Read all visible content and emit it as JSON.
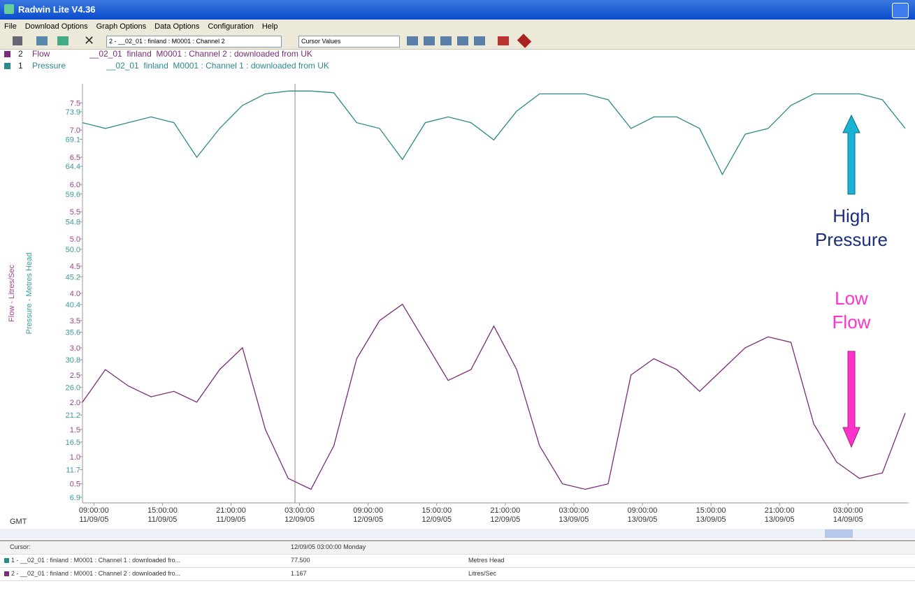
{
  "window": {
    "title": "Radwin Lite V4.36"
  },
  "menu": [
    "File",
    "Download Options",
    "Graph Options",
    "Data Options",
    "Configuration",
    "Help"
  ],
  "toolbar": {
    "channel_select": "2 - __02_01 : finland : M0001 : Channel 2",
    "view_select": "Cursor Values"
  },
  "chart_data": {
    "type": "line",
    "ylabel": "Flow - Litres/Sec",
    "y2label": "Pressure - Metres Head",
    "xlabel": "GMT",
    "x": [
      "08:00:00\n11/09/05",
      "10:00:00\n11/09/05",
      "12:00:00\n11/09/05",
      "14:00:00\n11/09/05",
      "16:00:00\n11/09/05",
      "18:00:00\n11/09/05",
      "20:00:00\n11/09/05",
      "22:00:00\n11/09/05",
      "00:00:00\n12/09/05",
      "02:00:00\n12/09/05",
      "04:00:00\n12/09/05",
      "06:00:00\n12/09/05",
      "08:00:00\n12/09/05",
      "10:00:00\n12/09/05",
      "12:00:00\n12/09/05",
      "14:00:00\n12/09/05",
      "16:00:00\n12/09/05",
      "18:00:00\n12/09/05",
      "20:00:00\n12/09/05",
      "22:00:00\n12/09/05",
      "00:00:00\n13/09/05",
      "02:00:00\n13/09/05",
      "04:00:00\n13/09/05",
      "06:00:00\n13/09/05",
      "08:00:00\n13/09/05",
      "10:00:00\n13/09/05",
      "12:00:00\n13/09/05",
      "14:00:00\n13/09/05",
      "16:00:00\n13/09/05",
      "18:00:00\n13/09/05",
      "20:00:00\n13/09/05",
      "22:00:00\n13/09/05",
      "00:00:00\n14/09/05",
      "02:00:00\n14/09/05",
      "04:00:00\n14/09/05",
      "06:00:00\n14/09/05",
      "08:00:00\n14/09/05"
    ],
    "series": [
      {
        "id": "2",
        "name": "Flow",
        "description": "__02_01  finland  M0001 : Channel 2 : downloaded from UK",
        "color": "#7a2b7a",
        "axis": "y",
        "values": [
          2.0,
          2.6,
          2.3,
          2.1,
          2.2,
          2.0,
          2.6,
          3.0,
          1.5,
          0.6,
          0.4,
          1.2,
          2.8,
          3.5,
          3.8,
          3.1,
          2.4,
          2.6,
          3.4,
          2.6,
          1.2,
          0.5,
          0.4,
          0.5,
          2.5,
          2.8,
          2.6,
          2.2,
          2.6,
          3.0,
          3.2,
          3.1,
          1.6,
          0.9,
          0.6,
          0.7,
          1.8
        ]
      },
      {
        "id": "1",
        "name": "Pressure",
        "description": "__02_01  finland  M0001 : Channel 1 : downloaded from UK",
        "color": "#2b8a8a",
        "axis": "y2",
        "values": [
          72,
          71,
          72,
          73,
          72,
          66,
          71,
          75,
          77,
          77.5,
          77.5,
          77.2,
          72,
          71,
          65.6,
          72,
          73,
          72,
          69,
          74,
          77,
          77,
          77,
          76,
          71,
          73,
          73,
          71,
          63,
          70,
          71,
          75,
          77,
          77,
          77,
          76,
          71
        ]
      }
    ],
    "xlim": [
      "08:00:00\n11/09/05",
      "08:00:00\n14/09/05"
    ],
    "xticks": [
      "09:00:00\n11/09/05",
      "15:00:00\n11/09/05",
      "21:00:00\n11/09/05",
      "03:00:00\n12/09/05",
      "09:00:00\n12/09/05",
      "15:00:00\n12/09/05",
      "21:00:00\n12/09/05",
      "03:00:00\n13/09/05",
      "09:00:00\n13/09/05",
      "15:00:00\n13/09/05",
      "21:00:00\n13/09/05",
      "03:00:00\n14/09/05"
    ],
    "ylim": [
      0.15,
      7.85
    ],
    "yticks": [
      0.5,
      {
        "value": 1,
        "label": "1.0"
      },
      1.5,
      {
        "value": 2,
        "label": "2.0"
      },
      2.5,
      {
        "value": 3,
        "label": "3.0"
      },
      3.5,
      {
        "value": 4,
        "label": "4.0"
      },
      4.5,
      {
        "value": 5,
        "label": "5.0"
      },
      5.5,
      {
        "value": 6,
        "label": "6.0"
      },
      6.5,
      {
        "value": 7,
        "label": "7.0"
      },
      7.5
    ],
    "y2lim": [
      5.93,
      78.75
    ],
    "y2ticks": [
      6.9,
      11.7,
      16.5,
      21.2,
      {
        "value": 26,
        "label": "26.0"
      },
      30.8,
      35.6,
      40.4,
      45.2,
      {
        "value": 50,
        "label": "50.0"
      },
      54.8,
      59.6,
      64.4,
      69.1,
      73.9
    ],
    "ytick_color": "#a0408f",
    "y2tick_color": "#3a9a9a",
    "grid": false,
    "annotations": [
      {
        "text": "High\nPressure",
        "color": "#1c2f7a"
      },
      {
        "text": "Low\nFlow",
        "color": "#ff33cc"
      }
    ]
  },
  "cursor_table": {
    "header": [
      "Cursor:",
      "12/09/05 03:00:00 Monday"
    ],
    "rows": [
      [
        "1 - __02_01 : finland : M0001 : Channel 1 : downloaded fro...",
        "77.500",
        "Metres Head"
      ],
      [
        "2 - __02_01 : finland : M0001 : Channel 2 : downloaded fro...",
        "1.167",
        "Litres/Sec"
      ]
    ]
  }
}
